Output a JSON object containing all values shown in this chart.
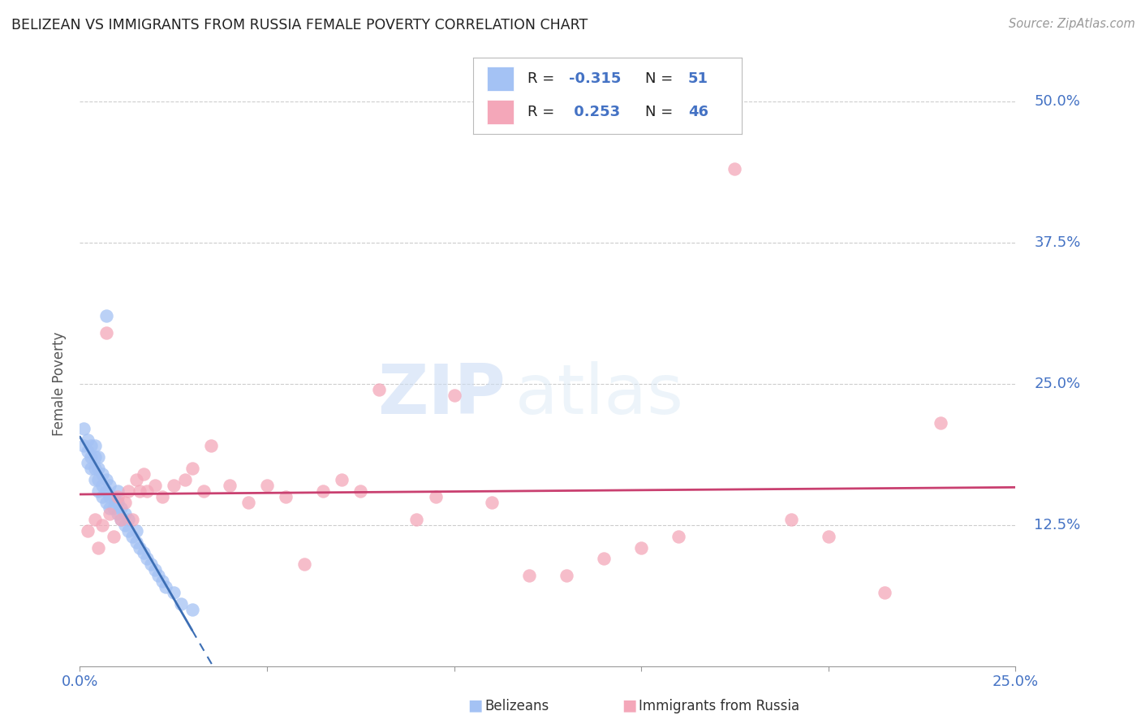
{
  "title": "BELIZEAN VS IMMIGRANTS FROM RUSSIA FEMALE POVERTY CORRELATION CHART",
  "source": "Source: ZipAtlas.com",
  "tick_color": "#4472c4",
  "ylabel": "Female Poverty",
  "x_min": 0.0,
  "x_max": 0.25,
  "y_min": 0.0,
  "y_max": 0.5,
  "x_ticks": [
    0.0,
    0.05,
    0.1,
    0.15,
    0.2,
    0.25
  ],
  "x_tick_labels": [
    "0.0%",
    "",
    "",
    "",
    "",
    "25.0%"
  ],
  "y_ticks": [
    0.0,
    0.125,
    0.25,
    0.375,
    0.5
  ],
  "y_tick_labels": [
    "",
    "12.5%",
    "25.0%",
    "37.5%",
    "50.0%"
  ],
  "belizean_color": "#a4c2f4",
  "russia_color": "#f4a7b9",
  "belizean_line_color": "#3c6eb4",
  "russia_line_color": "#c94070",
  "R_belizean": -0.315,
  "N_belizean": 51,
  "R_russia": 0.253,
  "N_russia": 46,
  "legend_label_1": "Belizeans",
  "legend_label_2": "Immigrants from Russia",
  "watermark_zip": "ZIP",
  "watermark_atlas": "atlas",
  "belizean_x": [
    0.001,
    0.001,
    0.002,
    0.002,
    0.002,
    0.003,
    0.003,
    0.003,
    0.004,
    0.004,
    0.004,
    0.004,
    0.005,
    0.005,
    0.005,
    0.005,
    0.006,
    0.006,
    0.006,
    0.007,
    0.007,
    0.007,
    0.008,
    0.008,
    0.008,
    0.009,
    0.009,
    0.01,
    0.01,
    0.01,
    0.011,
    0.011,
    0.012,
    0.012,
    0.013,
    0.013,
    0.014,
    0.015,
    0.015,
    0.016,
    0.017,
    0.018,
    0.019,
    0.02,
    0.021,
    0.022,
    0.023,
    0.025,
    0.027,
    0.03,
    0.007
  ],
  "belizean_y": [
    0.195,
    0.21,
    0.18,
    0.19,
    0.2,
    0.175,
    0.185,
    0.195,
    0.165,
    0.175,
    0.185,
    0.195,
    0.155,
    0.165,
    0.175,
    0.185,
    0.15,
    0.16,
    0.17,
    0.145,
    0.155,
    0.165,
    0.14,
    0.15,
    0.16,
    0.14,
    0.15,
    0.135,
    0.145,
    0.155,
    0.13,
    0.14,
    0.125,
    0.135,
    0.12,
    0.13,
    0.115,
    0.11,
    0.12,
    0.105,
    0.1,
    0.095,
    0.09,
    0.085,
    0.08,
    0.075,
    0.07,
    0.065,
    0.055,
    0.05,
    0.31
  ],
  "russia_x": [
    0.002,
    0.004,
    0.005,
    0.006,
    0.007,
    0.008,
    0.009,
    0.01,
    0.011,
    0.012,
    0.013,
    0.014,
    0.015,
    0.016,
    0.017,
    0.018,
    0.02,
    0.022,
    0.025,
    0.028,
    0.03,
    0.033,
    0.035,
    0.04,
    0.045,
    0.05,
    0.055,
    0.06,
    0.065,
    0.07,
    0.075,
    0.08,
    0.09,
    0.095,
    0.1,
    0.11,
    0.12,
    0.13,
    0.14,
    0.15,
    0.16,
    0.175,
    0.19,
    0.2,
    0.215,
    0.23
  ],
  "russia_y": [
    0.12,
    0.13,
    0.105,
    0.125,
    0.295,
    0.135,
    0.115,
    0.15,
    0.13,
    0.145,
    0.155,
    0.13,
    0.165,
    0.155,
    0.17,
    0.155,
    0.16,
    0.15,
    0.16,
    0.165,
    0.175,
    0.155,
    0.195,
    0.16,
    0.145,
    0.16,
    0.15,
    0.09,
    0.155,
    0.165,
    0.155,
    0.245,
    0.13,
    0.15,
    0.24,
    0.145,
    0.08,
    0.08,
    0.095,
    0.105,
    0.115,
    0.44,
    0.13,
    0.115,
    0.065,
    0.215
  ]
}
